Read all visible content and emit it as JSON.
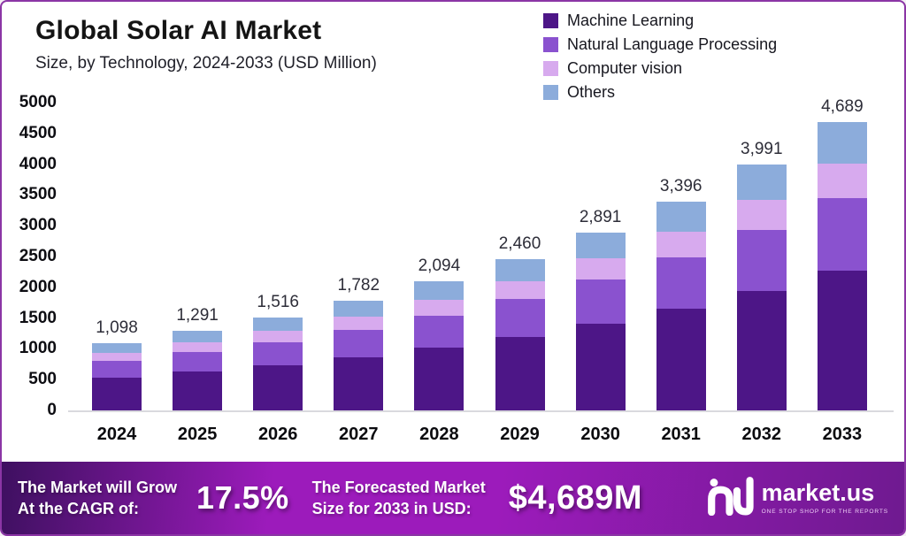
{
  "colors": {
    "frame_border": "#8b35a5",
    "banner_gradient": [
      "#3e1060",
      "#9c1bbb",
      "#6f1a90"
    ],
    "machine_learning": "#4d1687",
    "nlp": "#8a52cf",
    "computer_vision": "#d7aaee",
    "others": "#8cacdb"
  },
  "header": {
    "title": "Global Solar AI Market",
    "subtitle": "Size, by Technology, 2024-2033 (USD Million)"
  },
  "chart_data": {
    "type": "bar",
    "stacked": true,
    "title": "Global Solar AI Market",
    "subtitle": "Size, by Technology, 2024-2033 (USD Million)",
    "xlabel": "",
    "ylabel": "",
    "ylim": [
      0,
      5000
    ],
    "yticks": [
      0,
      500,
      1000,
      1500,
      2000,
      2500,
      3000,
      3500,
      4000,
      4500,
      5000
    ],
    "grid": false,
    "legend_position": "top-right",
    "categories": [
      "2024",
      "2025",
      "2026",
      "2027",
      "2028",
      "2029",
      "2030",
      "2031",
      "2032",
      "2033"
    ],
    "series": [
      {
        "name": "Machine Learning",
        "color": "#4d1687",
        "values": [
          533,
          626,
          735,
          864,
          1016,
          1193,
          1402,
          1647,
          1936,
          2274
        ]
      },
      {
        "name": "Natural Language Processing",
        "color": "#8a52cf",
        "values": [
          273,
          321,
          378,
          444,
          521,
          613,
          720,
          846,
          994,
          1168
        ]
      },
      {
        "name": "Computer vision",
        "color": "#d7aaee",
        "values": [
          133,
          156,
          183,
          216,
          253,
          298,
          350,
          411,
          483,
          567
        ]
      },
      {
        "name": "Others",
        "color": "#8cacdb",
        "values": [
          159,
          188,
          220,
          258,
          304,
          356,
          419,
          492,
          578,
          680
        ]
      }
    ],
    "totals": [
      1098,
      1291,
      1516,
      1782,
      2094,
      2460,
      2891,
      3396,
      3991,
      4689
    ],
    "total_labels": [
      "1,098",
      "1,291",
      "1,516",
      "1,782",
      "2,094",
      "2,460",
      "2,891",
      "3,396",
      "3,991",
      "4,689"
    ]
  },
  "footer": {
    "cagr_label_line1": "The Market will Grow",
    "cagr_label_line2": "At the CAGR of:",
    "cagr_value": "17.5%",
    "forecast_label_line1": "The Forecasted Market",
    "forecast_label_line2": "Size for 2033 in USD:",
    "forecast_value": "$4,689M",
    "brand_name": "market.us",
    "brand_tagline": "ONE STOP SHOP FOR THE REPORTS"
  }
}
